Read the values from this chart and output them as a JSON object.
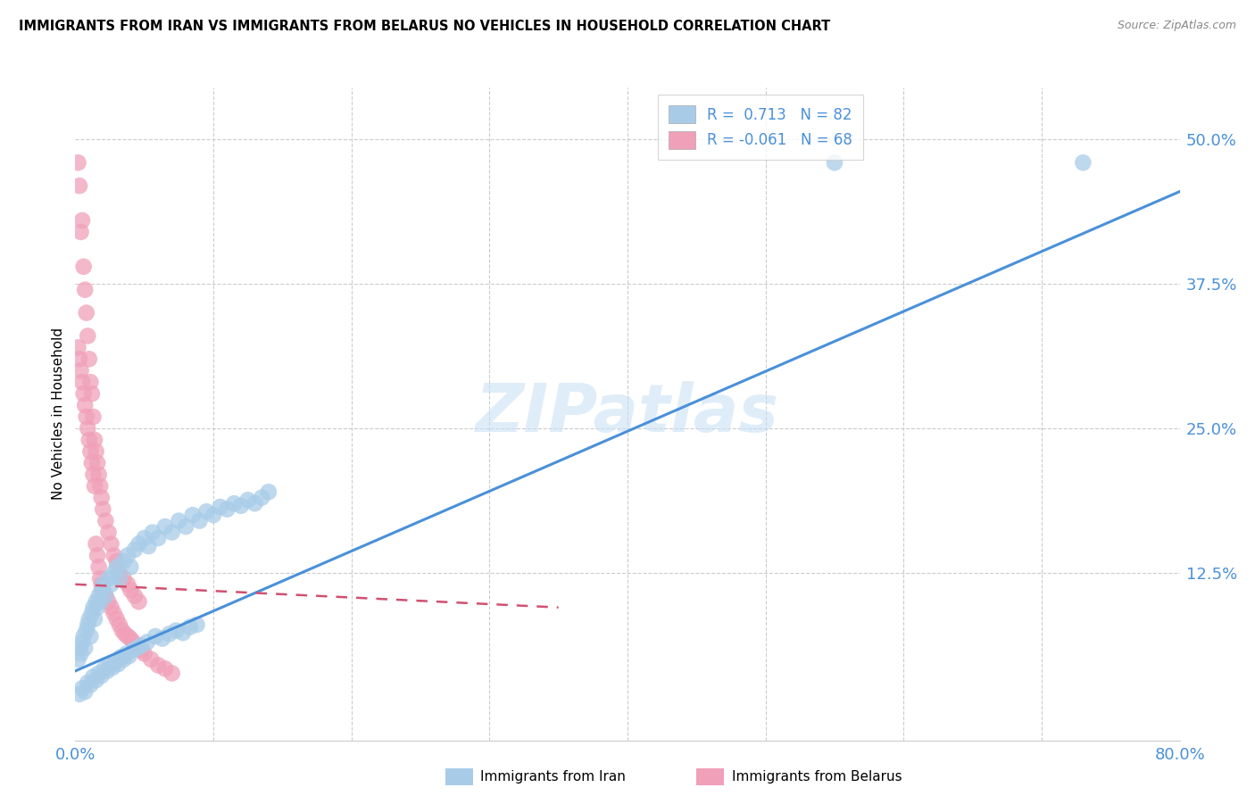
{
  "title": "IMMIGRANTS FROM IRAN VS IMMIGRANTS FROM BELARUS NO VEHICLES IN HOUSEHOLD CORRELATION CHART",
  "source": "Source: ZipAtlas.com",
  "ylabel": "No Vehicles in Household",
  "ytick_vals": [
    0.125,
    0.25,
    0.375,
    0.5
  ],
  "ytick_labels": [
    "12.5%",
    "25.0%",
    "37.5%",
    "50.0%"
  ],
  "iran_color": "#a8cce8",
  "iran_line_color": "#4a90d9",
  "belarus_color": "#f0a0b8",
  "belarus_line_color": "#d05070",
  "watermark_text": "ZIPatlas",
  "xmin": 0.0,
  "xmax": 0.8,
  "ymin": -0.02,
  "ymax": 0.545,
  "iran_line_x0": 0.0,
  "iran_line_y0": 0.04,
  "iran_line_x1": 0.8,
  "iran_line_y1": 0.455,
  "belarus_line_x0": 0.0,
  "belarus_line_y0": 0.115,
  "belarus_line_x1": 0.35,
  "belarus_line_y1": 0.095,
  "iran_scatter_x": [
    0.002,
    0.003,
    0.004,
    0.005,
    0.006,
    0.007,
    0.008,
    0.009,
    0.01,
    0.011,
    0.012,
    0.013,
    0.014,
    0.015,
    0.016,
    0.017,
    0.018,
    0.019,
    0.02,
    0.022,
    0.024,
    0.026,
    0.028,
    0.03,
    0.032,
    0.035,
    0.038,
    0.04,
    0.043,
    0.046,
    0.05,
    0.053,
    0.056,
    0.06,
    0.065,
    0.07,
    0.075,
    0.08,
    0.085,
    0.09,
    0.095,
    0.1,
    0.105,
    0.11,
    0.115,
    0.12,
    0.125,
    0.13,
    0.135,
    0.14,
    0.003,
    0.005,
    0.007,
    0.009,
    0.011,
    0.013,
    0.015,
    0.017,
    0.019,
    0.021,
    0.023,
    0.025,
    0.027,
    0.029,
    0.031,
    0.033,
    0.035,
    0.037,
    0.039,
    0.042,
    0.045,
    0.048,
    0.052,
    0.058,
    0.063,
    0.068,
    0.073,
    0.078,
    0.083,
    0.088,
    0.55,
    0.73
  ],
  "iran_scatter_y": [
    0.05,
    0.06,
    0.055,
    0.065,
    0.07,
    0.06,
    0.075,
    0.08,
    0.085,
    0.07,
    0.09,
    0.095,
    0.085,
    0.1,
    0.095,
    0.105,
    0.1,
    0.11,
    0.115,
    0.105,
    0.12,
    0.115,
    0.125,
    0.13,
    0.12,
    0.135,
    0.14,
    0.13,
    0.145,
    0.15,
    0.155,
    0.148,
    0.16,
    0.155,
    0.165,
    0.16,
    0.17,
    0.165,
    0.175,
    0.17,
    0.178,
    0.175,
    0.182,
    0.18,
    0.185,
    0.183,
    0.188,
    0.185,
    0.19,
    0.195,
    0.02,
    0.025,
    0.022,
    0.03,
    0.028,
    0.035,
    0.032,
    0.038,
    0.036,
    0.042,
    0.04,
    0.045,
    0.043,
    0.048,
    0.046,
    0.052,
    0.05,
    0.055,
    0.053,
    0.058,
    0.06,
    0.062,
    0.065,
    0.07,
    0.068,
    0.072,
    0.075,
    0.073,
    0.078,
    0.08,
    0.48,
    0.48
  ],
  "belarus_scatter_x": [
    0.002,
    0.003,
    0.004,
    0.005,
    0.006,
    0.007,
    0.008,
    0.009,
    0.01,
    0.011,
    0.012,
    0.013,
    0.014,
    0.015,
    0.016,
    0.017,
    0.018,
    0.019,
    0.02,
    0.022,
    0.024,
    0.026,
    0.028,
    0.03,
    0.032,
    0.035,
    0.038,
    0.04,
    0.043,
    0.046,
    0.002,
    0.003,
    0.004,
    0.005,
    0.006,
    0.007,
    0.008,
    0.009,
    0.01,
    0.011,
    0.012,
    0.013,
    0.014,
    0.015,
    0.016,
    0.017,
    0.018,
    0.019,
    0.02,
    0.022,
    0.024,
    0.026,
    0.028,
    0.03,
    0.032,
    0.034,
    0.036,
    0.038,
    0.04,
    0.042,
    0.044,
    0.046,
    0.048,
    0.05,
    0.055,
    0.06,
    0.065,
    0.07
  ],
  "belarus_scatter_y": [
    0.48,
    0.46,
    0.42,
    0.43,
    0.39,
    0.37,
    0.35,
    0.33,
    0.31,
    0.29,
    0.28,
    0.26,
    0.24,
    0.23,
    0.22,
    0.21,
    0.2,
    0.19,
    0.18,
    0.17,
    0.16,
    0.15,
    0.14,
    0.135,
    0.125,
    0.12,
    0.115,
    0.11,
    0.105,
    0.1,
    0.32,
    0.31,
    0.3,
    0.29,
    0.28,
    0.27,
    0.26,
    0.25,
    0.24,
    0.23,
    0.22,
    0.21,
    0.2,
    0.15,
    0.14,
    0.13,
    0.12,
    0.115,
    0.11,
    0.105,
    0.1,
    0.095,
    0.09,
    0.085,
    0.08,
    0.075,
    0.072,
    0.07,
    0.068,
    0.065,
    0.062,
    0.06,
    0.058,
    0.055,
    0.05,
    0.045,
    0.042,
    0.038
  ]
}
